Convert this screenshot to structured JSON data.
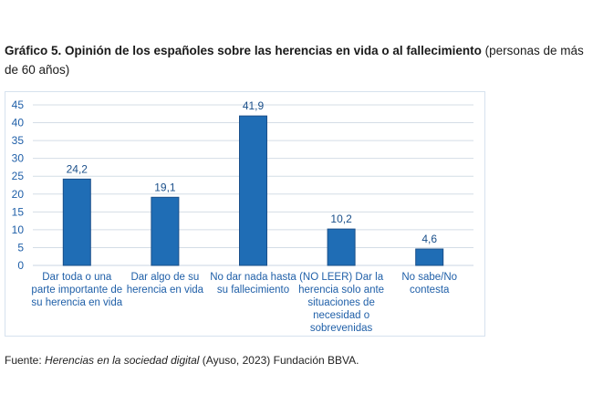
{
  "title": {
    "bold": "Gráfico 5. Opinión de los españoles sobre las herencias en vida o al fallecimiento",
    "normal": " (personas de más de 60 años)"
  },
  "source": {
    "prefix": "Fuente: ",
    "italic": "Herencias en la sociedad digital",
    "suffix": " (Ayuso, 2023) Fundación BBVA."
  },
  "colors": {
    "bar": "#1f6db5",
    "bar_border": "#1a4f8a",
    "grid": "#d4dde6",
    "text": "#1f5fa8"
  },
  "chart_data": {
    "type": "bar",
    "title": "Gráfico 5. Opinión de los españoles sobre las herencias en vida o al fallecimiento (personas de más de 60 años)",
    "xlabel": "",
    "ylabel": "",
    "ylim": [
      0,
      45
    ],
    "yticks": [
      0,
      5,
      10,
      15,
      20,
      25,
      30,
      35,
      40,
      45
    ],
    "ytick_labels": [
      "0",
      "5",
      "10",
      "15",
      "20",
      "25",
      "30",
      "35",
      "40",
      "45"
    ],
    "grid": true,
    "legend": "none",
    "categories": [
      "Dar toda o una parte importante de su herencia en vida",
      "Dar algo de su herencia en vida",
      "No dar nada hasta su fallecimiento",
      "(NO LEER) Dar la herencia solo ante situaciones de necesidad o sobrevenidas",
      "No sabe/No contesta"
    ],
    "values": [
      24.2,
      19.1,
      41.9,
      10.2,
      4.6
    ],
    "data_labels": [
      "24,2",
      "19,1",
      "41,9",
      "10,2",
      "4,6"
    ]
  }
}
